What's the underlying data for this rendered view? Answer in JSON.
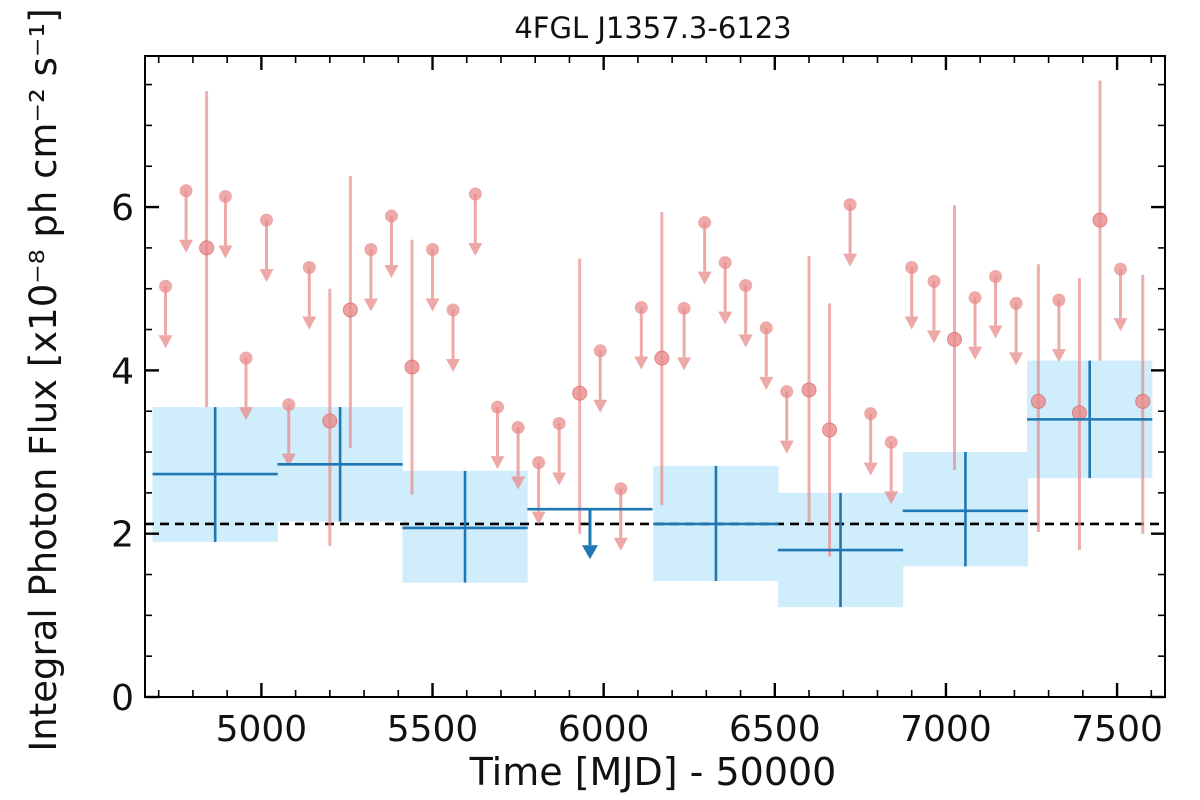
{
  "chart_data": {
    "type": "scatter",
    "title": "4FGL J1357.3-6123",
    "xlabel": "Time [MJD] - 50000",
    "ylabel": "Integral Photon Flux [x10⁻⁸ ph cm⁻² s⁻¹]",
    "xlim": [
      4660,
      7640
    ],
    "ylim": [
      0,
      7.85
    ],
    "x_ticks": [
      5000,
      5500,
      6000,
      6500,
      7000,
      7500
    ],
    "y_ticks": [
      0,
      2,
      4,
      6
    ],
    "reference_level": 2.12,
    "colors": {
      "long_bin": "#1f77b4",
      "long_bin_band": "#d0edfc",
      "short_bin": "#e88c8c",
      "reference_line": "#000000"
    },
    "series": [
      {
        "bin": "long",
        "points": [
          {
            "x": 4865,
            "xerr": 183,
            "y": 2.73,
            "lo": 1.9,
            "hi": 3.55
          },
          {
            "x": 5230,
            "xerr": 183,
            "y": 2.85,
            "lo": 2.15,
            "hi": 3.55
          },
          {
            "x": 5595,
            "xerr": 183,
            "y": 2.07,
            "lo": 1.4,
            "hi": 2.77
          },
          {
            "x": 5960,
            "xerr": 183,
            "upper_limit": 2.3
          },
          {
            "x": 6328,
            "xerr": 183,
            "y": 2.12,
            "lo": 1.42,
            "hi": 2.83
          },
          {
            "x": 6692,
            "xerr": 183,
            "y": 1.8,
            "lo": 1.1,
            "hi": 2.5
          },
          {
            "x": 7057,
            "xerr": 183,
            "y": 2.28,
            "lo": 1.6,
            "hi": 3.0
          },
          {
            "x": 7420,
            "xerr": 183,
            "y": 3.4,
            "lo": 2.68,
            "hi": 4.12
          }
        ]
      },
      {
        "bin": "short",
        "points": [
          {
            "x": 4720,
            "upper_limit": 5.03
          },
          {
            "x": 4780,
            "upper_limit": 6.2
          },
          {
            "x": 4840,
            "y": 5.5,
            "lo": 3.55,
            "hi": 7.42
          },
          {
            "x": 4895,
            "upper_limit": 6.13
          },
          {
            "x": 4955,
            "upper_limit": 4.15
          },
          {
            "x": 5015,
            "upper_limit": 5.84
          },
          {
            "x": 5080,
            "upper_limit": 3.58
          },
          {
            "x": 5140,
            "upper_limit": 5.26
          },
          {
            "x": 5200,
            "y": 3.38,
            "lo": 1.85,
            "hi": 5.0
          },
          {
            "x": 5260,
            "y": 4.74,
            "lo": 3.05,
            "hi": 6.38
          },
          {
            "x": 5320,
            "upper_limit": 5.48
          },
          {
            "x": 5380,
            "upper_limit": 5.89
          },
          {
            "x": 5440,
            "y": 4.04,
            "lo": 2.48,
            "hi": 5.6
          },
          {
            "x": 5500,
            "upper_limit": 5.48
          },
          {
            "x": 5560,
            "upper_limit": 4.74
          },
          {
            "x": 5625,
            "upper_limit": 6.16
          },
          {
            "x": 5690,
            "upper_limit": 3.55
          },
          {
            "x": 5750,
            "upper_limit": 3.3
          },
          {
            "x": 5810,
            "upper_limit": 2.87
          },
          {
            "x": 5870,
            "upper_limit": 3.35
          },
          {
            "x": 5930,
            "y": 3.72,
            "lo": 2.0,
            "hi": 5.37
          },
          {
            "x": 5990,
            "upper_limit": 4.24
          },
          {
            "x": 6050,
            "upper_limit": 2.55
          },
          {
            "x": 6110,
            "upper_limit": 4.77
          },
          {
            "x": 6170,
            "y": 4.15,
            "lo": 2.35,
            "hi": 5.94
          },
          {
            "x": 6235,
            "upper_limit": 4.76
          },
          {
            "x": 6295,
            "upper_limit": 5.81
          },
          {
            "x": 6355,
            "upper_limit": 5.32
          },
          {
            "x": 6415,
            "upper_limit": 5.04
          },
          {
            "x": 6475,
            "upper_limit": 4.52
          },
          {
            "x": 6535,
            "upper_limit": 3.74
          },
          {
            "x": 6600,
            "y": 3.76,
            "lo": 2.13,
            "hi": 5.4
          },
          {
            "x": 6660,
            "y": 3.27,
            "lo": 1.72,
            "hi": 4.82
          },
          {
            "x": 6720,
            "upper_limit": 6.03
          },
          {
            "x": 6780,
            "upper_limit": 3.47
          },
          {
            "x": 6840,
            "upper_limit": 3.12
          },
          {
            "x": 6900,
            "upper_limit": 5.26
          },
          {
            "x": 6965,
            "upper_limit": 5.09
          },
          {
            "x": 7025,
            "y": 4.38,
            "lo": 2.78,
            "hi": 6.02
          },
          {
            "x": 7085,
            "upper_limit": 4.89
          },
          {
            "x": 7145,
            "upper_limit": 5.15
          },
          {
            "x": 7205,
            "upper_limit": 4.82
          },
          {
            "x": 7270,
            "y": 3.62,
            "lo": 2.02,
            "hi": 5.3
          },
          {
            "x": 7330,
            "upper_limit": 4.86
          },
          {
            "x": 7390,
            "y": 3.48,
            "lo": 1.8,
            "hi": 5.13
          },
          {
            "x": 7450,
            "y": 5.84,
            "lo": 4.12,
            "hi": 7.55
          },
          {
            "x": 7510,
            "upper_limit": 5.24
          },
          {
            "x": 7575,
            "y": 3.62,
            "lo": 2.0,
            "hi": 5.17
          }
        ]
      }
    ]
  }
}
